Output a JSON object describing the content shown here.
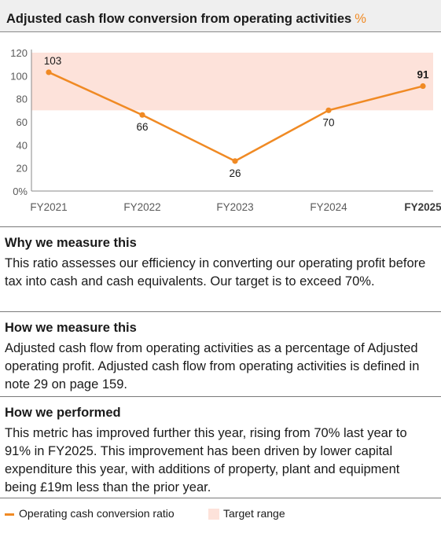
{
  "title": {
    "text": "Adjusted cash flow conversion from operating activities",
    "unit": "%"
  },
  "colors": {
    "line": "#f08a24",
    "target_band": "#fde2da",
    "axis_text": "#5a5a5a",
    "gridline": "#d4d4d4"
  },
  "chart_data": {
    "type": "line",
    "categories": [
      "FY2021",
      "FY2022",
      "FY2023",
      "FY2024",
      "FY2025"
    ],
    "highlighted_category": "FY2025",
    "series": [
      {
        "name": "Operating cash conversion ratio",
        "values": [
          103,
          66,
          26,
          70,
          91
        ]
      }
    ],
    "data_labels": [
      "103",
      "66",
      "26",
      "70",
      "91"
    ],
    "target_range": {
      "name": "Target range",
      "from": 70,
      "to": 120
    },
    "ylim": [
      0,
      120
    ],
    "yticks": [
      0,
      20,
      40,
      60,
      80,
      100,
      120
    ],
    "ytick_labels": [
      "0%",
      "20",
      "40",
      "60",
      "80",
      "100",
      "120"
    ],
    "grid": false,
    "legend": "bottom"
  },
  "sections": [
    {
      "title": "Why we measure this",
      "body": "This ratio assesses our efficiency in converting our operating profit before tax into cash and cash equivalents. Our target is to exceed 70%."
    },
    {
      "title": "How we measure this",
      "body": "Adjusted cash flow from operating activities as a percentage of Adjusted operating profit. Adjusted cash flow from operating activities is defined in note 29 on page 159."
    },
    {
      "title": "How we performed",
      "body": "This metric has improved further this year, rising from 70% last year to 91% in FY2025. This improvement has been driven by lower capital expenditure this year, with additions of property, plant and equipment being £19m less than the prior year."
    }
  ],
  "legend": {
    "line_label": "Operating cash conversion ratio",
    "band_label": "Target range"
  }
}
